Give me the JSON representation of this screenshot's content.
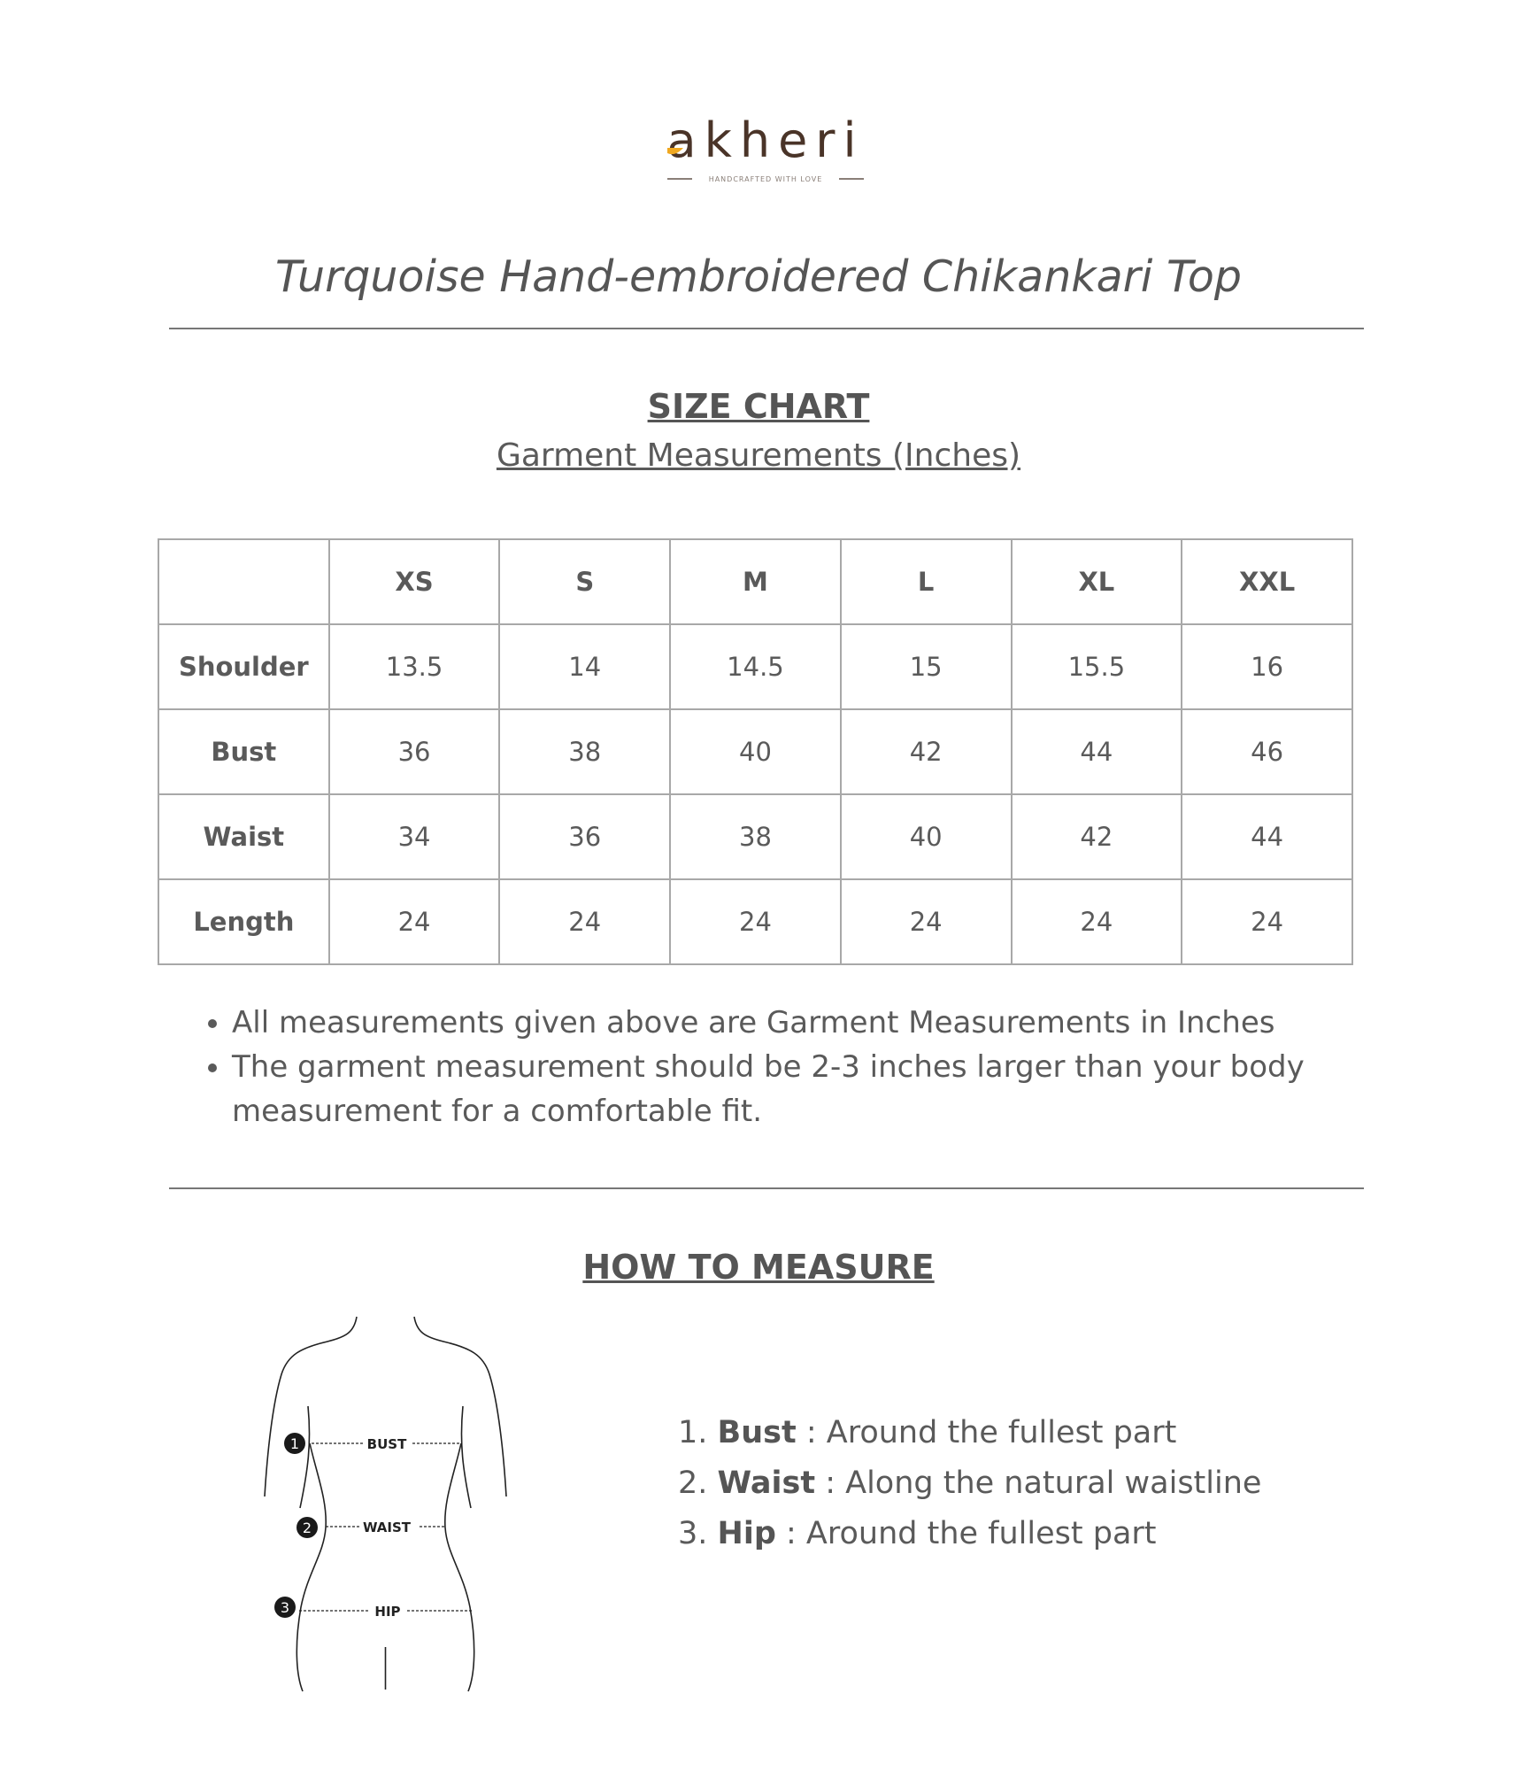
{
  "brand": {
    "name": "akheri",
    "tagline": "HANDCRAFTED WITH LOVE",
    "text_color": "#4a3428",
    "accent_color": "#f0a820"
  },
  "title": "Turquoise Hand-embroidered Chikankari Top",
  "size_chart": {
    "heading": "SIZE CHART",
    "subheading": "Garment Measurements (Inches)",
    "columns": [
      "",
      "XS",
      "S",
      "M",
      "L",
      "XL",
      "XXL"
    ],
    "rows": [
      {
        "label": "Shoulder",
        "values": [
          "13.5",
          "14",
          "14.5",
          "15",
          "15.5",
          "16"
        ]
      },
      {
        "label": "Bust",
        "values": [
          "36",
          "38",
          "40",
          "42",
          "44",
          "46"
        ]
      },
      {
        "label": "Waist",
        "values": [
          "34",
          "36",
          "38",
          "40",
          "42",
          "44"
        ]
      },
      {
        "label": "Length",
        "values": [
          "24",
          "24",
          "24",
          "24",
          "24",
          "24"
        ]
      }
    ]
  },
  "notes": [
    "All measurements given above are Garment Measurements in Inches",
    "The garment measurement should be 2-3 inches larger than your body measurement for a comfortable fit."
  ],
  "how_to_measure": {
    "heading": "HOW TO MEASURE",
    "figure_labels": [
      "BUST",
      "WAIST",
      "HIP"
    ],
    "figure_numbers": [
      "1",
      "2",
      "3"
    ],
    "items": [
      {
        "num": "1.",
        "name": "Bust",
        "desc": " : Around the fullest part"
      },
      {
        "num": "2.",
        "name": "Waist",
        "desc": " : Along the natural waistline"
      },
      {
        "num": "3.",
        "name": "Hip",
        "desc": " : Around the fullest part"
      }
    ]
  }
}
